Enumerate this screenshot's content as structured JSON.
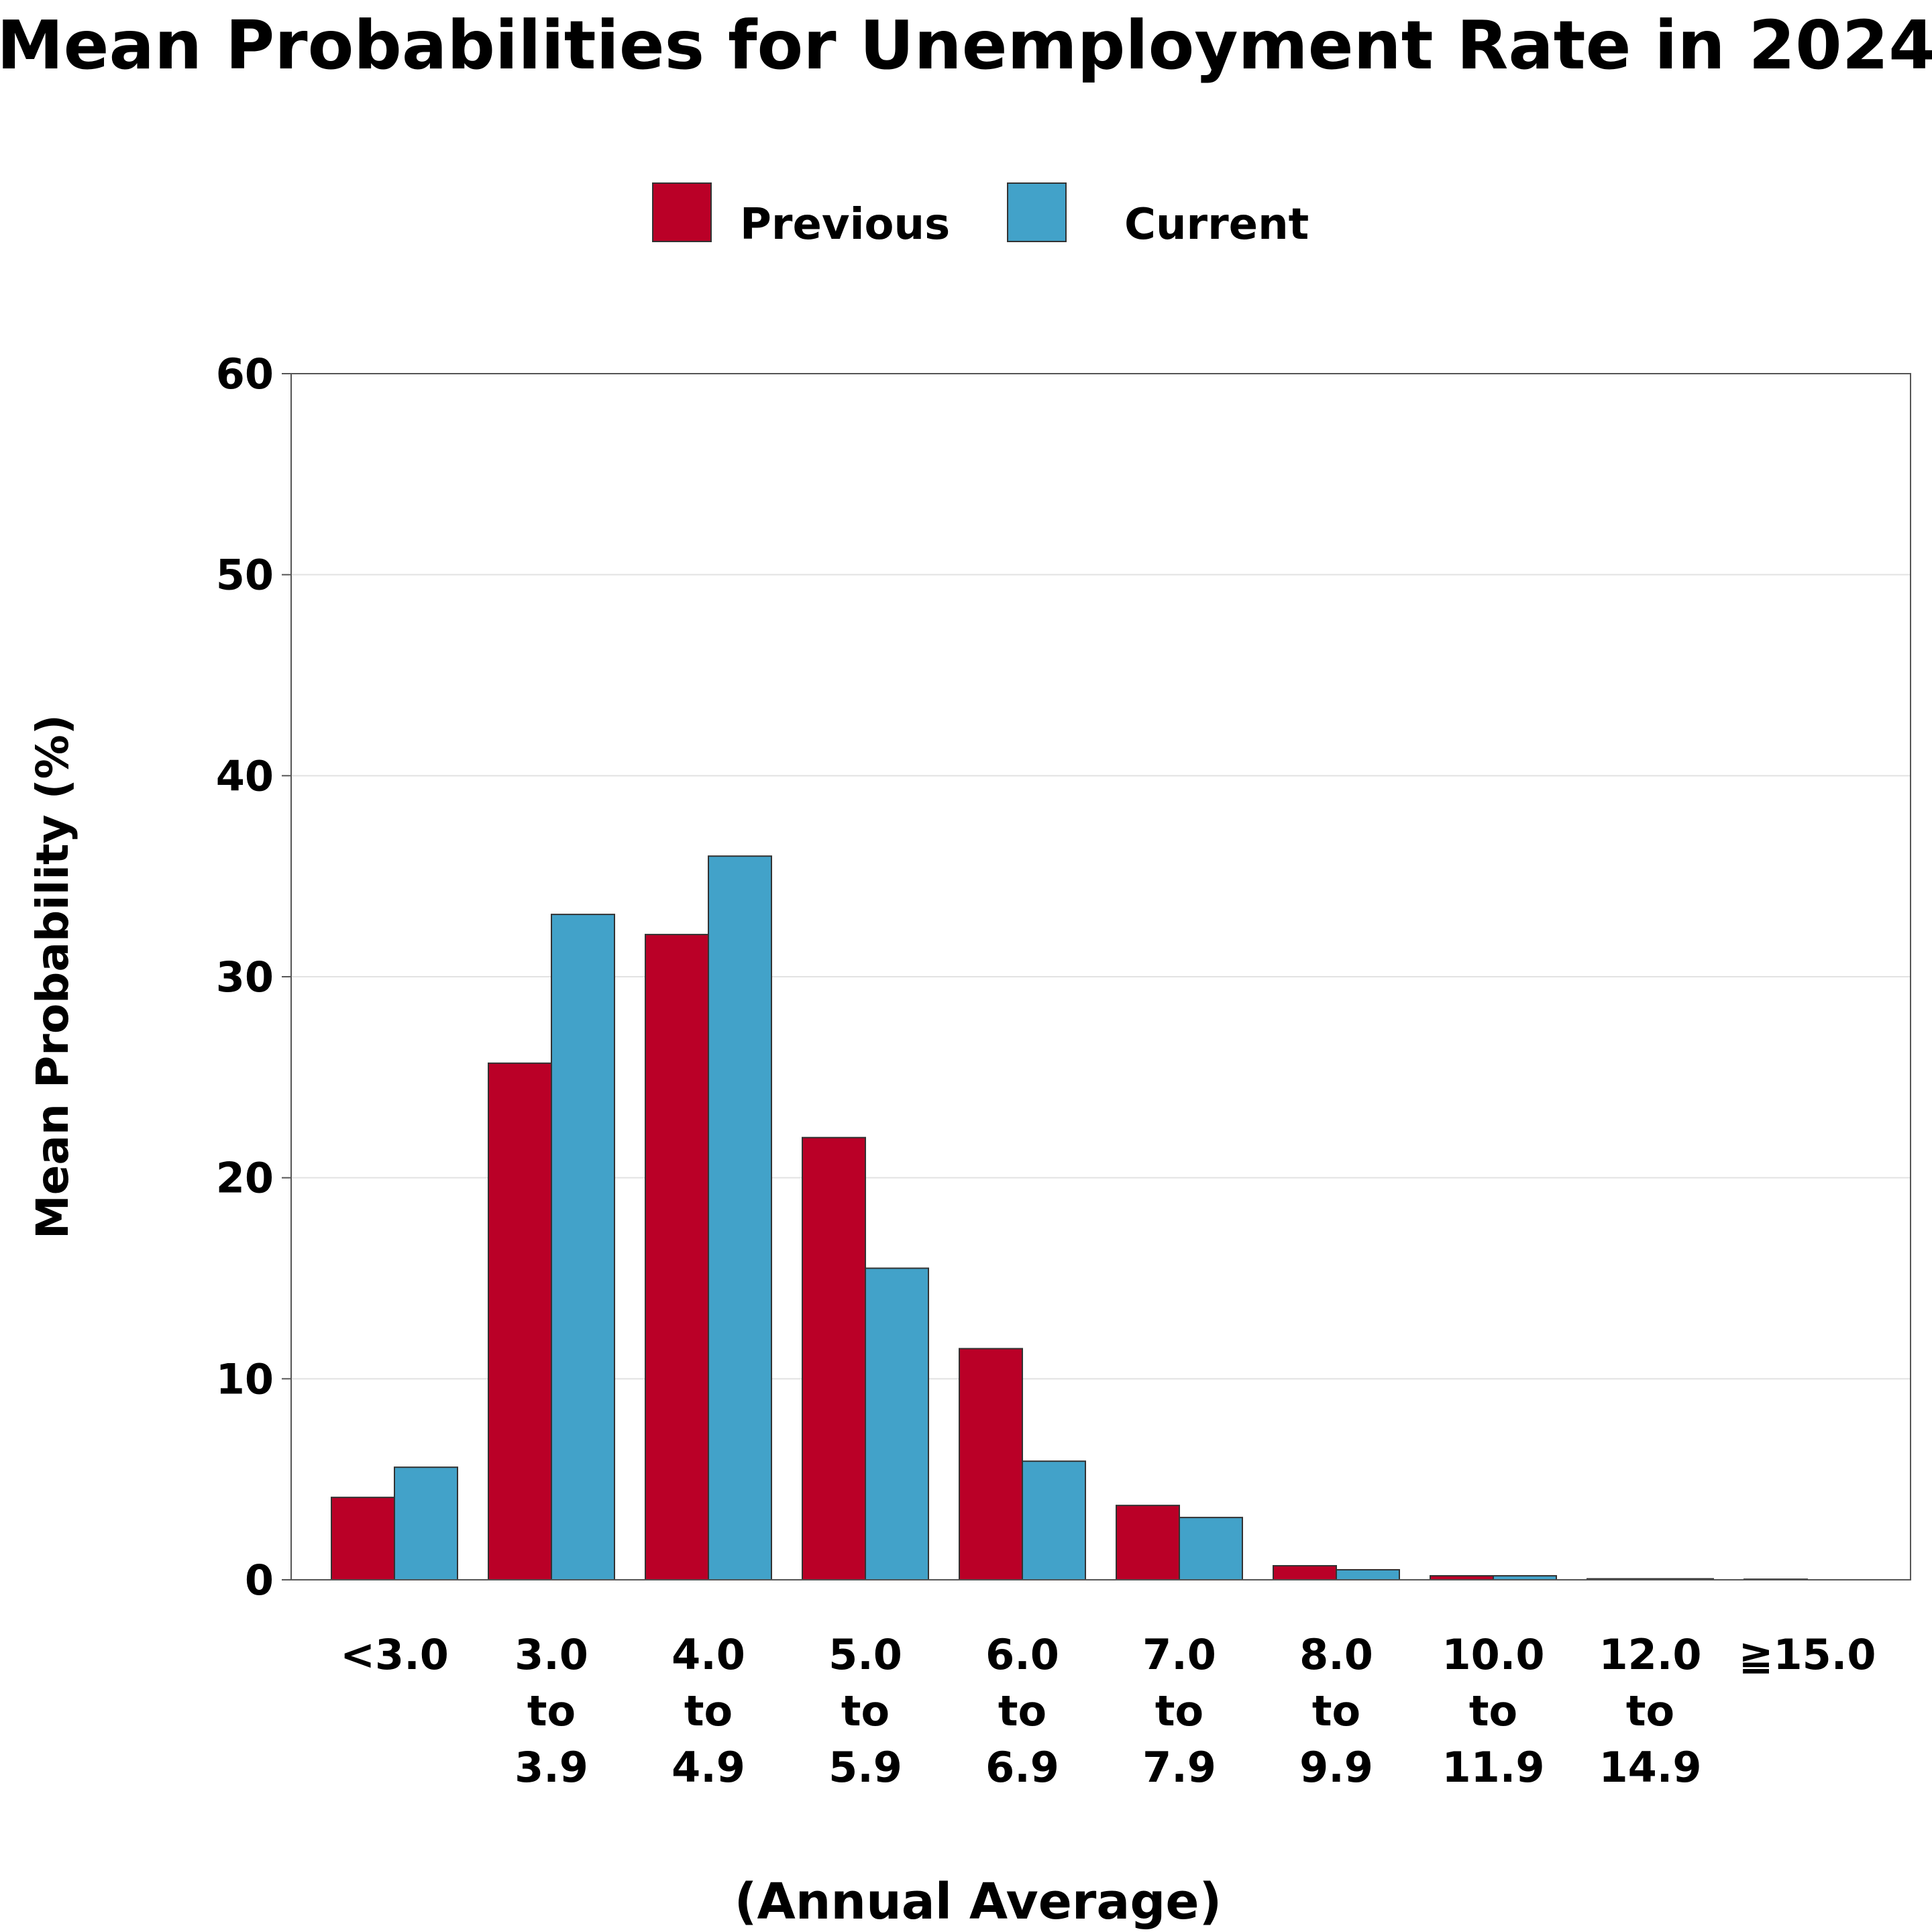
{
  "chart_data": {
    "type": "bar",
    "title": "Mean Probabilities for Unemployment Rate in 2024",
    "xlabel": "(Annual Average)",
    "ylabel": "Mean Probability (%)",
    "ylim": [
      0,
      60
    ],
    "yticks": [
      0,
      10,
      20,
      30,
      40,
      50,
      60
    ],
    "grid": true,
    "legend_position": "top-center",
    "categories": [
      "<3.0",
      "3.0 to 3.9",
      "4.0 to 4.9",
      "5.0 to 5.9",
      "6.0 to 6.9",
      "7.0 to 7.9",
      "8.0 to 9.9",
      "10.0 to 11.9",
      "12.0 to 14.9",
      "≧15.0"
    ],
    "category_lines": [
      [
        "<3.0"
      ],
      [
        "3.0",
        "to",
        "3.9"
      ],
      [
        "4.0",
        "to",
        "4.9"
      ],
      [
        "5.0",
        "to",
        "5.9"
      ],
      [
        "6.0",
        "to",
        "6.9"
      ],
      [
        "7.0",
        "to",
        "7.9"
      ],
      [
        "8.0",
        "to",
        "9.9"
      ],
      [
        "10.0",
        "to",
        "11.9"
      ],
      [
        "12.0",
        "to",
        "14.9"
      ],
      [
        "≧15.0"
      ]
    ],
    "series": [
      {
        "name": "Previous",
        "color": "#BA0027",
        "values": [
          4.1,
          25.7,
          32.1,
          22.0,
          11.5,
          3.7,
          0.7,
          0.2,
          0.05,
          0.03
        ]
      },
      {
        "name": "Current",
        "color": "#42A2C9",
        "values": [
          5.6,
          33.1,
          36.0,
          15.5,
          5.9,
          3.1,
          0.5,
          0.2,
          0.05,
          0.0
        ]
      }
    ]
  }
}
